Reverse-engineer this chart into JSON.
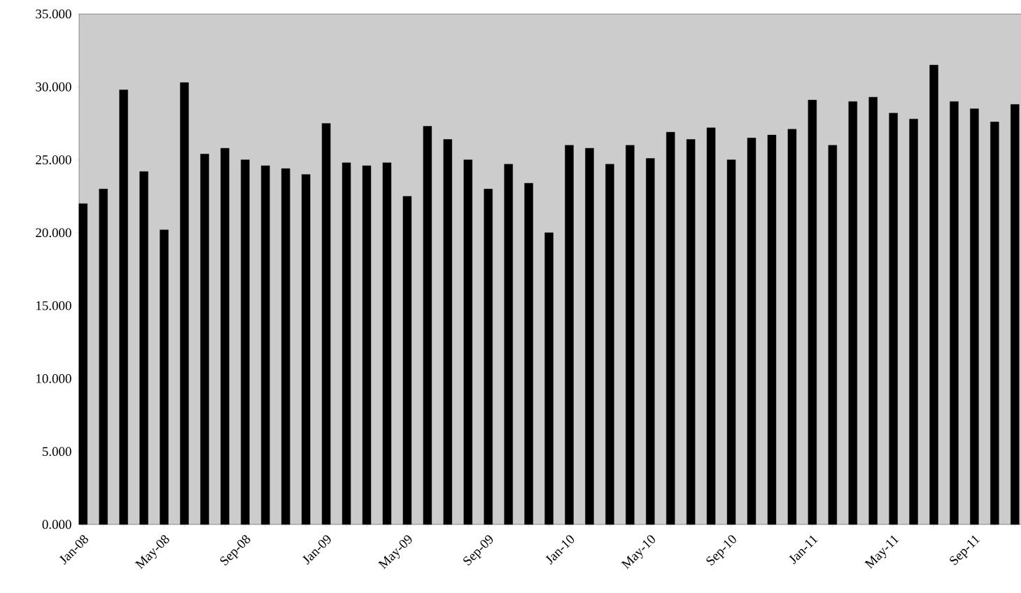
{
  "chart_data": {
    "type": "bar",
    "categories": [
      "Jan-08",
      null,
      null,
      null,
      "May-08",
      null,
      null,
      null,
      "Sep-08",
      null,
      null,
      null,
      "Jan-09",
      null,
      null,
      null,
      "May-09",
      null,
      null,
      null,
      "Sep-09",
      null,
      null,
      null,
      "Jan-10",
      null,
      null,
      null,
      "May-10",
      null,
      null,
      null,
      "Sep-10",
      null,
      null,
      null,
      "Jan-11",
      null,
      null,
      null,
      "May-11",
      null,
      null,
      null,
      "Sep-11",
      null,
      null
    ],
    "values": [
      22.0,
      23.0,
      29.8,
      24.2,
      20.2,
      30.3,
      25.4,
      25.8,
      25.0,
      24.6,
      24.4,
      24.0,
      27.5,
      24.8,
      24.6,
      24.8,
      22.5,
      27.3,
      26.4,
      25.0,
      23.0,
      24.7,
      23.4,
      20.0,
      26.0,
      25.8,
      24.7,
      26.0,
      25.1,
      26.9,
      26.4,
      27.2,
      25.0,
      26.5,
      26.7,
      27.1,
      29.1,
      26.0,
      29.0,
      29.3,
      28.2,
      27.8,
      31.5,
      29.0,
      28.5,
      27.6,
      28.8
    ],
    "color": "#000000",
    "ylim": [
      0,
      35
    ],
    "yticks": [
      {
        "value": 0,
        "label": "0.000"
      },
      {
        "value": 5,
        "label": "5.000"
      },
      {
        "value": 10,
        "label": "10.000"
      },
      {
        "value": 15,
        "label": "15.000"
      },
      {
        "value": 20,
        "label": "20.000"
      },
      {
        "value": 25,
        "label": "25.000"
      },
      {
        "value": 30,
        "label": "30.000"
      },
      {
        "value": 35,
        "label": "35.000"
      }
    ],
    "grid": false
  }
}
